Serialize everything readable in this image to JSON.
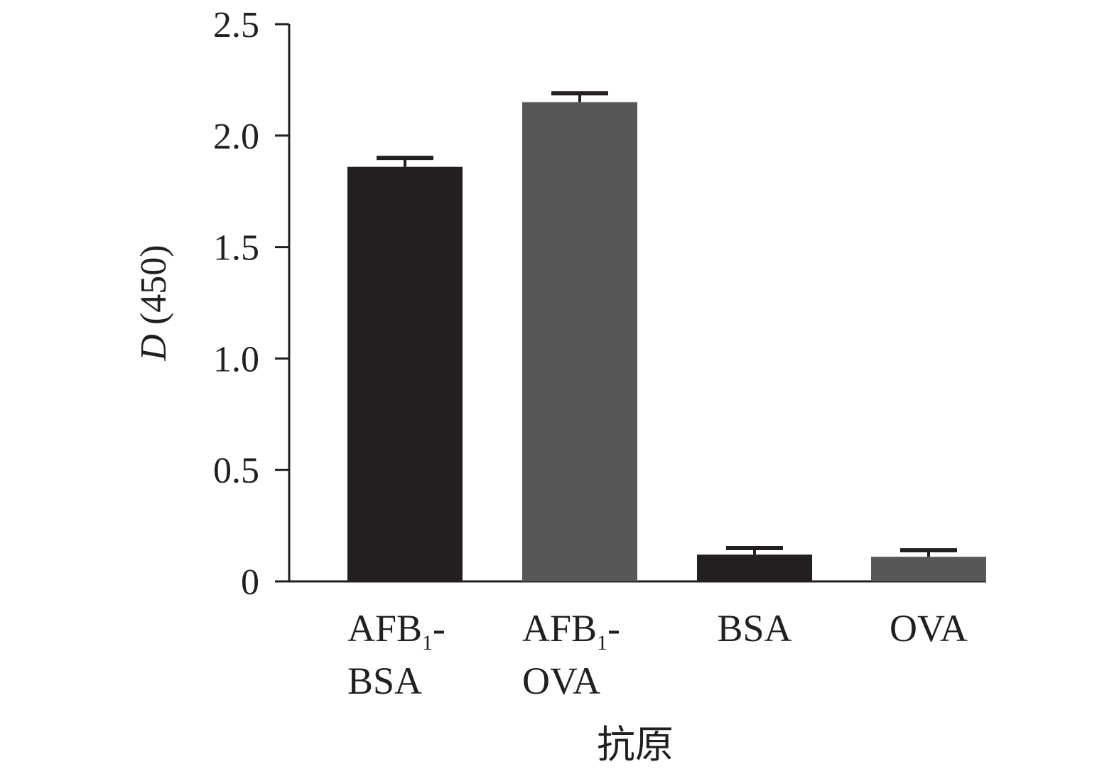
{
  "chart_data": {
    "type": "bar",
    "title": "",
    "xlabel": "抗原",
    "ylabel": {
      "italic": "D",
      "rest": " (450)"
    },
    "categories": [
      {
        "lines": [
          [
            "AFB",
            "1",
            "-"
          ],
          [
            "BSA"
          ]
        ]
      },
      {
        "lines": [
          [
            "AFB",
            "1",
            "-"
          ],
          [
            "OVA"
          ]
        ]
      },
      {
        "lines": [
          [
            "BSA"
          ]
        ]
      },
      {
        "lines": [
          [
            "OVA"
          ]
        ]
      }
    ],
    "category_names": [
      "AFB1-BSA",
      "AFB1-OVA",
      "BSA",
      "OVA"
    ],
    "values": [
      1.86,
      2.15,
      0.12,
      0.11
    ],
    "errors": [
      0.04,
      0.04,
      0.03,
      0.03
    ],
    "bar_colors": [
      "#231f20",
      "#595657",
      "#231f20",
      "#595657"
    ],
    "ylim": [
      0,
      2.5
    ],
    "yticks": [
      0,
      0.5,
      1.0,
      1.5,
      2.0,
      2.5
    ],
    "ytick_labels": [
      "0",
      "0.5",
      "1.0",
      "1.5",
      "2.0",
      "2.5"
    ],
    "grid": false,
    "legend": "none"
  }
}
